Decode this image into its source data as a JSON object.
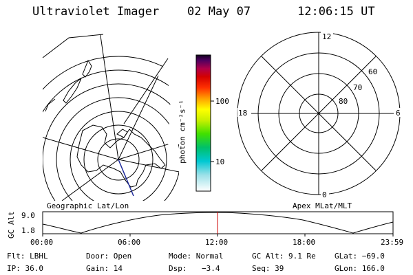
{
  "header": {
    "instrument": "Ultraviolet Imager",
    "date": "02 May 07",
    "time": "12:06:15 UT"
  },
  "geo_map": {
    "label": "Geographic Lat/Lon"
  },
  "colorbar": {
    "unit_label": "photon cm⁻²s⁻¹",
    "ticks": [
      "100",
      "10"
    ]
  },
  "mag_plot": {
    "label": "Apex MLat/MLT",
    "mlt_labels": [
      "12",
      "18",
      "6",
      "0"
    ],
    "lat_labels": [
      "60",
      "70",
      "80"
    ]
  },
  "altitude_plot": {
    "ylabel": "GC Alt",
    "y_ticks": [
      "9.0",
      "1.8"
    ],
    "x_ticks": [
      "00:00",
      "06:00",
      "12:00",
      "18:00",
      "23:59"
    ]
  },
  "status": {
    "filter": "Flt: LBHL",
    "door": "Door: Open",
    "mode": "Mode: Normal",
    "gc_alt": "GC Alt: 9.1 Re",
    "glat": "GLat: −69.0",
    "ip": "IP: 36.0",
    "gain": "Gain: 14",
    "dsp_label": "Dsp:",
    "dsp_value": "−3.4",
    "seq": "Seq: 39",
    "glon": "GLon: 166.0"
  }
}
